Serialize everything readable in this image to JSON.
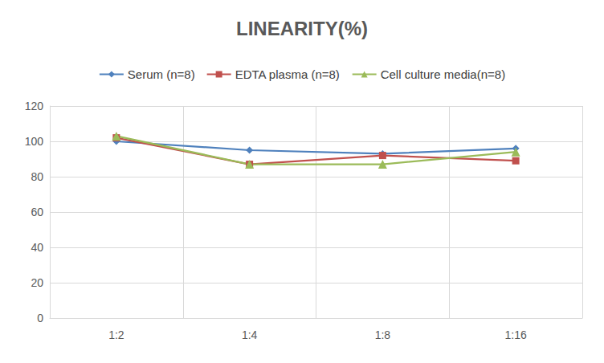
{
  "chart_data": {
    "type": "line",
    "title": "LINEARITY(%)",
    "categories": [
      "1:2",
      "1:4",
      "1:8",
      "1:16"
    ],
    "series": [
      {
        "name": "Serum (n=8)",
        "color": "#4f81bd",
        "marker": "diamond",
        "values": [
          100,
          95,
          93,
          96
        ]
      },
      {
        "name": "EDTA plasma (n=8)",
        "color": "#c0504d",
        "marker": "square",
        "values": [
          102,
          87,
          92,
          89
        ]
      },
      {
        "name": "Cell culture media(n=8)",
        "color": "#9bbb59",
        "marker": "triangle",
        "values": [
          103,
          87,
          87,
          94
        ]
      }
    ],
    "ylim": [
      0,
      120
    ],
    "yticks": [
      0,
      20,
      40,
      60,
      80,
      100,
      120
    ],
    "grid": true,
    "legend": "top"
  }
}
